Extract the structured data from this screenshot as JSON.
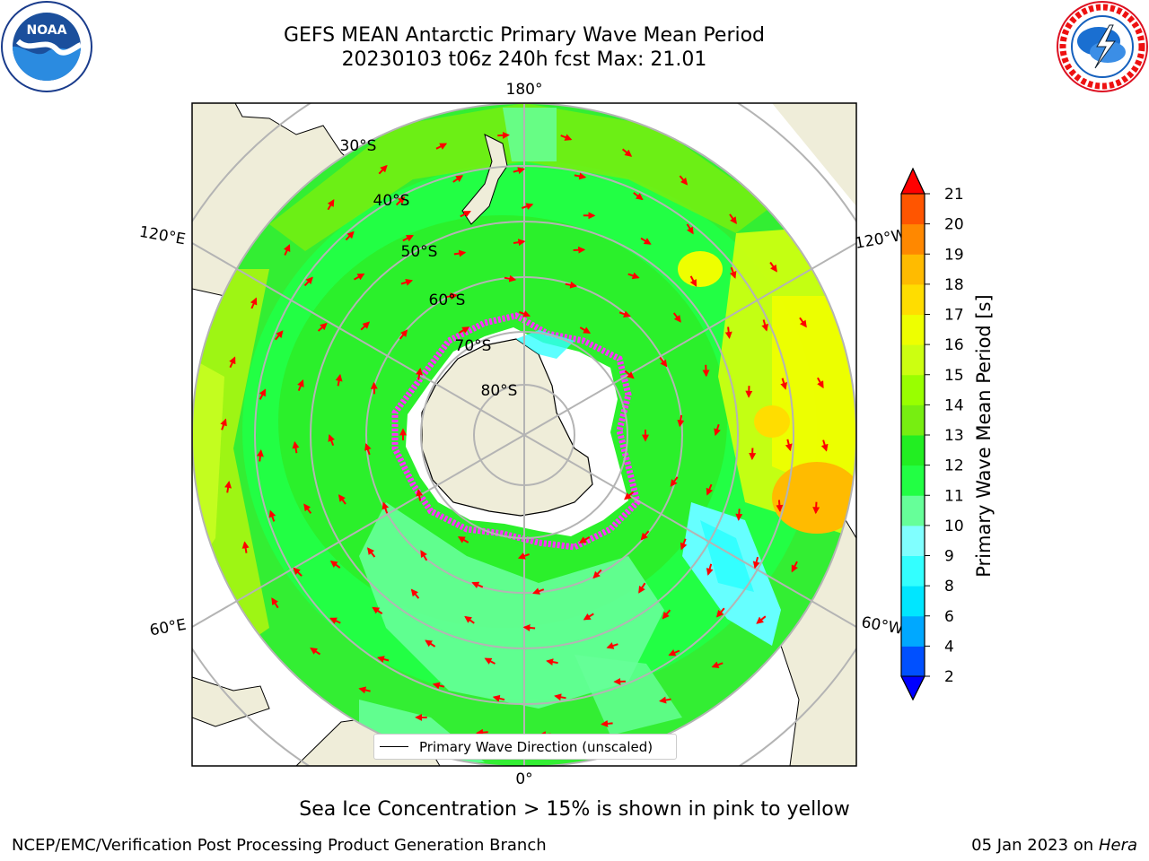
{
  "header": {
    "title_line1": "GEFS MEAN Antarctic Primary Wave Mean Period",
    "title_line2": "20230103 t06z 240h fcst   Max: 21.01"
  },
  "logos": {
    "left": {
      "name": "noaa-logo",
      "text": "NOAA",
      "ring_text": "NATIONAL OCEANIC AND ATMOSPHERIC ADMINISTRATION · U.S. DEPARTMENT OF COMMERCE"
    },
    "right": {
      "name": "nws-logo",
      "ring_text": "NATIONAL WEATHER SERVICE"
    }
  },
  "map": {
    "projection": "south-polar-stereographic",
    "meridian_labels": {
      "top": "180°",
      "bottom": "0°",
      "upper_left": "120°E",
      "lower_left": "60°E",
      "upper_right": "120°W",
      "lower_right": "60°W"
    },
    "parallel_labels": [
      "30°S",
      "40°S",
      "50°S",
      "60°S",
      "70°S",
      "80°S"
    ],
    "colors": {
      "land": "#efedd9",
      "ice_edge": "#ff33ff",
      "arrows": "#ff0000",
      "grid": "#b4b4b4"
    }
  },
  "legend": {
    "label": "Primary Wave Direction (unscaled)"
  },
  "colorbar": {
    "label": "Primary Wave Mean Period [s]",
    "ticks": [
      "2",
      "4",
      "6",
      "8",
      "9",
      "10",
      "11",
      "12",
      "13",
      "14",
      "15",
      "16",
      "17",
      "18",
      "19",
      "20",
      "21"
    ],
    "colors": [
      "#0050ff",
      "#00a8ff",
      "#00e6ff",
      "#33ffff",
      "#80ffff",
      "#66ff99",
      "#22ff44",
      "#22ee22",
      "#77ee11",
      "#99ff00",
      "#ccff11",
      "#eeff00",
      "#ffdd00",
      "#ffbb00",
      "#ff8800",
      "#ff5500",
      "#ff2200"
    ],
    "min_color": "#0000ff",
    "max_color": "#ff0000"
  },
  "note": "Sea Ice Concentration > 15% is shown in pink to yellow",
  "footer": {
    "left": "NCEP/EMC/Verification Post Processing Product Generation Branch",
    "right_date": "05 Jan 2023 on",
    "right_host": "Hera"
  }
}
